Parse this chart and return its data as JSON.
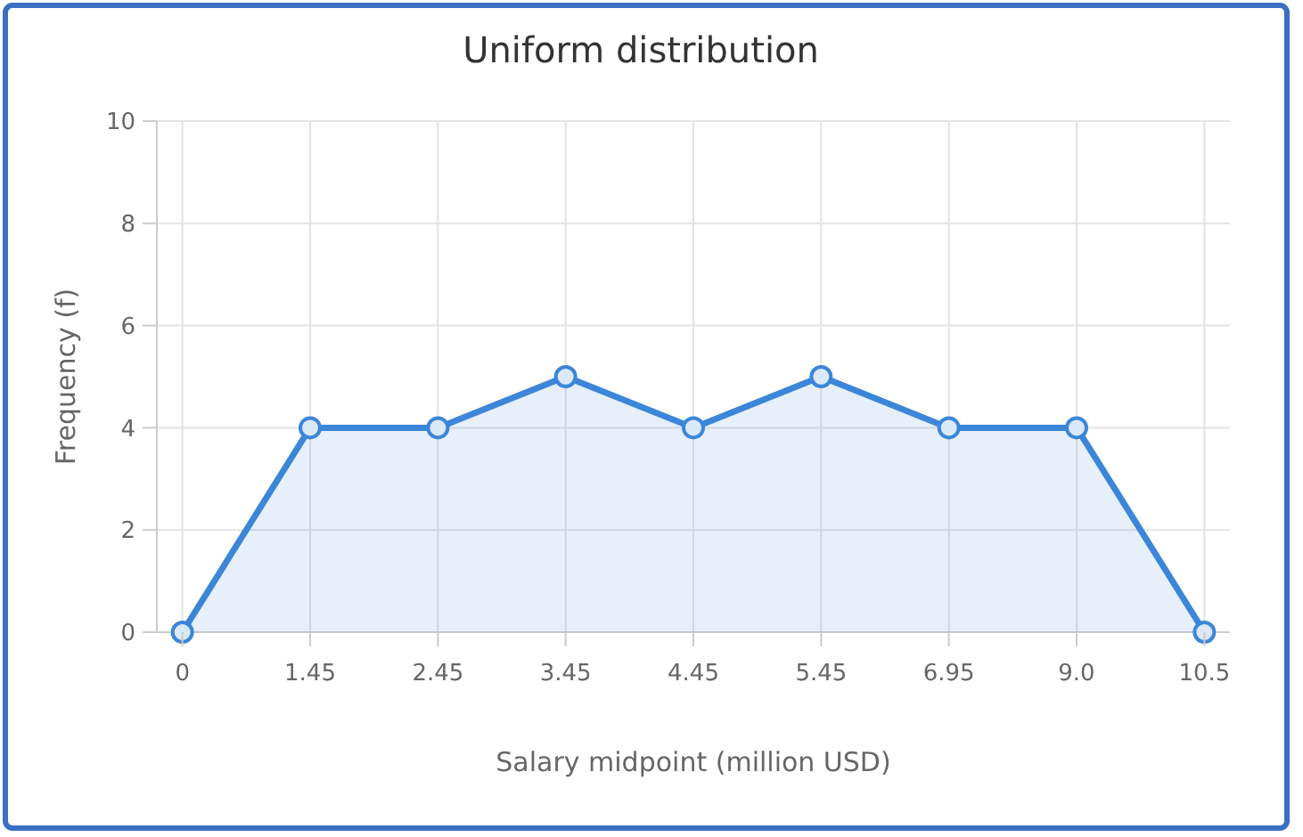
{
  "chart_data": {
    "type": "area",
    "title": "Uniform distribution",
    "xlabel": "Salary midpoint (million USD)",
    "ylabel": "Frequency (f)",
    "categories": [
      "0",
      "1.45",
      "2.45",
      "3.45",
      "4.45",
      "5.45",
      "6.95",
      "9.0",
      "10.5"
    ],
    "series": [
      {
        "color": "#3b86d9",
        "values": [
          0,
          4,
          4,
          5,
          4,
          5,
          4,
          4,
          0
        ]
      }
    ],
    "ylim": [
      0,
      10
    ],
    "yticks": [
      0,
      2,
      4,
      6,
      8,
      10
    ],
    "grid": true,
    "marker": "circle",
    "line_style": "solid"
  }
}
